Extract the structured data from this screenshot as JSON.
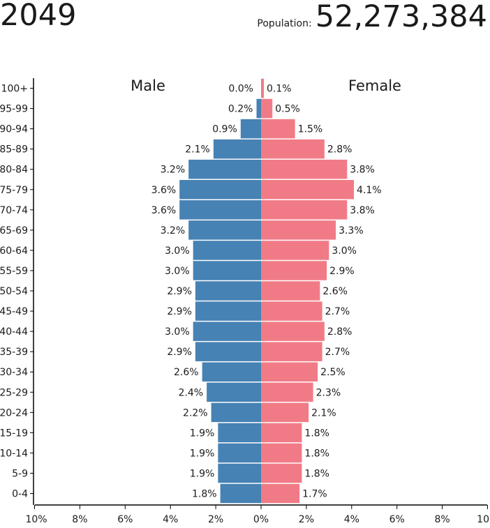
{
  "header": {
    "year": "2049",
    "population_label": "Population:",
    "population_value": "52,273,384"
  },
  "colors": {
    "male": "#4682b4",
    "female": "#f07b87",
    "axis": "#000000"
  },
  "chart_data": {
    "type": "bar",
    "orientation": "horizontal-diverging",
    "title": "2049",
    "categories": [
      "100+",
      "95-99",
      "90-94",
      "85-89",
      "80-84",
      "75-79",
      "70-74",
      "65-69",
      "60-64",
      "55-59",
      "50-54",
      "45-49",
      "40-44",
      "35-39",
      "30-34",
      "25-29",
      "20-24",
      "15-19",
      "10-14",
      "5-9",
      "0-4"
    ],
    "series": [
      {
        "name": "Male",
        "side": "left",
        "values": [
          0.0,
          0.2,
          0.9,
          2.1,
          3.2,
          3.6,
          3.6,
          3.2,
          3.0,
          3.0,
          2.9,
          2.9,
          3.0,
          2.9,
          2.6,
          2.4,
          2.2,
          1.9,
          1.9,
          1.9,
          1.8
        ],
        "labels": [
          "0.0%",
          "0.2%",
          "0.9%",
          "2.1%",
          "3.2%",
          "3.6%",
          "3.6%",
          "3.2%",
          "3.0%",
          "3.0%",
          "2.9%",
          "2.9%",
          "3.0%",
          "2.9%",
          "2.6%",
          "2.4%",
          "2.2%",
          "1.9%",
          "1.9%",
          "1.9%",
          "1.8%"
        ]
      },
      {
        "name": "Female",
        "side": "right",
        "values": [
          0.1,
          0.5,
          1.5,
          2.8,
          3.8,
          4.1,
          3.8,
          3.3,
          3.0,
          2.9,
          2.6,
          2.7,
          2.8,
          2.7,
          2.5,
          2.3,
          2.1,
          1.8,
          1.8,
          1.8,
          1.7
        ],
        "labels": [
          "0.1%",
          "0.5%",
          "1.5%",
          "2.8%",
          "3.8%",
          "4.1%",
          "3.8%",
          "3.3%",
          "3.0%",
          "2.9%",
          "2.6%",
          "2.7%",
          "2.8%",
          "2.7%",
          "2.5%",
          "2.3%",
          "2.1%",
          "1.8%",
          "1.8%",
          "1.8%",
          "1.7%"
        ]
      }
    ],
    "x_ticks": [
      "10%",
      "8%",
      "6%",
      "4%",
      "2%",
      "0%",
      "2%",
      "4%",
      "6%",
      "8%",
      "10"
    ],
    "xlim": [
      -10,
      10
    ],
    "legend": [
      "Male",
      "Female"
    ]
  }
}
